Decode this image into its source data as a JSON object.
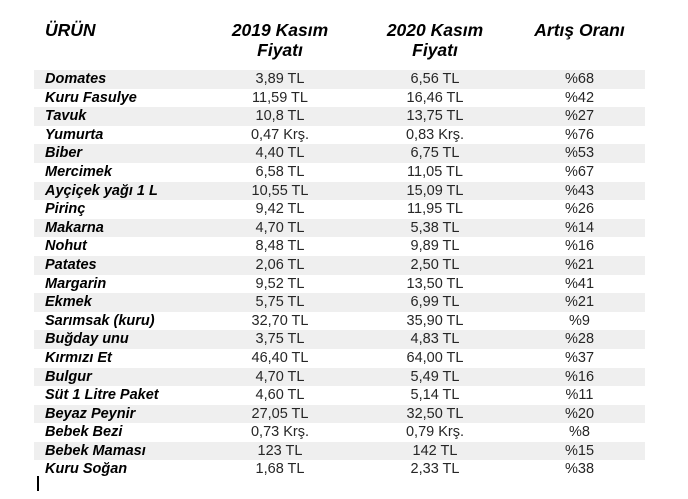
{
  "colors": {
    "background": "#ffffff",
    "stripe": "#efefef",
    "header_text": "#000000",
    "body_text": "#262626"
  },
  "header": {
    "col_product": "ÜRÜN",
    "col_2019_line1": "2019 Kasım",
    "col_2019_line2": "Fiyatı",
    "col_2020_line1": "2020 Kasım",
    "col_2020_line2": "Fiyatı",
    "col_rate": "Artış Oranı"
  },
  "chart_data": {
    "type": "table",
    "title": "",
    "columns": [
      "ÜRÜN",
      "2019 Kasım Fiyatı",
      "2020 Kasım Fiyatı",
      "Artış Oranı"
    ],
    "rows": [
      [
        "Domates",
        "3,89 TL",
        "6,56 TL",
        "%68"
      ],
      [
        "Kuru Fasulye",
        "11,59 TL",
        "16,46 TL",
        "%42"
      ],
      [
        "Tavuk",
        "10,8 TL",
        "13,75 TL",
        "%27"
      ],
      [
        "Yumurta",
        "0,47 Krş.",
        "0,83 Krş.",
        "%76"
      ],
      [
        "Biber",
        "4,40 TL",
        "6,75 TL",
        "%53"
      ],
      [
        "Mercimek",
        "6,58 TL",
        "11,05 TL",
        "%67"
      ],
      [
        "Ayçiçek yağı 1 L",
        "10,55 TL",
        "15,09 TL",
        "%43"
      ],
      [
        "Pirinç",
        "9,42 TL",
        "11,95 TL",
        "%26"
      ],
      [
        "Makarna",
        "4,70 TL",
        "5,38 TL",
        "%14"
      ],
      [
        "Nohut",
        "8,48 TL",
        "9,89 TL",
        "%16"
      ],
      [
        "Patates",
        "2,06 TL",
        "2,50 TL",
        "%21"
      ],
      [
        "Margarin",
        "9,52 TL",
        "13,50 TL",
        "%41"
      ],
      [
        "Ekmek",
        "5,75 TL",
        "6,99 TL",
        "%21"
      ],
      [
        "Sarımsak (kuru)",
        "32,70 TL",
        "35,90 TL",
        "%9"
      ],
      [
        "Buğday unu",
        "3,75 TL",
        "4,83 TL",
        "%28"
      ],
      [
        "Kırmızı Et",
        "46,40 TL",
        "64,00 TL",
        "%37"
      ],
      [
        "Bulgur",
        "4,70 TL",
        "5,49 TL",
        "%16"
      ],
      [
        "Süt 1 Litre Paket",
        "4,60 TL",
        "5,14 TL",
        "%11"
      ],
      [
        "Beyaz Peynir",
        "27,05 TL",
        "32,50 TL",
        "%20"
      ],
      [
        "Bebek Bezi",
        "0,73 Krş.",
        "0,79 Krş.",
        "%8"
      ],
      [
        "Bebek Maması",
        "123 TL",
        "142 TL",
        "%15"
      ],
      [
        "Kuru Soğan",
        "1,68 TL",
        "2,33 TL",
        "%38"
      ]
    ]
  }
}
